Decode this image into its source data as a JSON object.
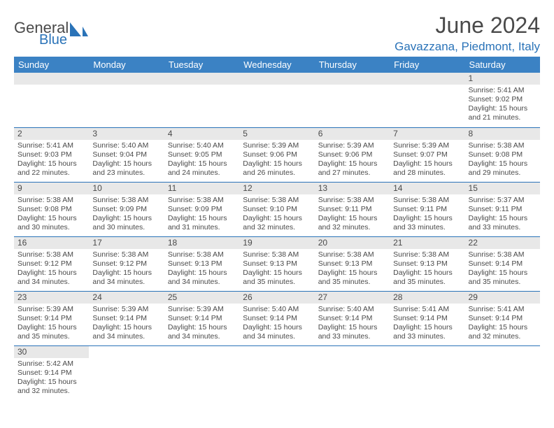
{
  "logo": {
    "general": "General",
    "blue": "Blue"
  },
  "title": "June 2024",
  "location": "Gavazzana, Piedmont, Italy",
  "colors": {
    "header_bg": "#3b82c4",
    "header_fg": "#ffffff",
    "accent": "#2a73b8",
    "daynum_bg": "#e8e8e8",
    "text": "#4a4a4a"
  },
  "weekdays": [
    "Sunday",
    "Monday",
    "Tuesday",
    "Wednesday",
    "Thursday",
    "Friday",
    "Saturday"
  ],
  "weeks": [
    [
      null,
      null,
      null,
      null,
      null,
      null,
      {
        "n": "1",
        "sr": "Sunrise: 5:41 AM",
        "ss": "Sunset: 9:02 PM",
        "d1": "Daylight: 15 hours",
        "d2": "and 21 minutes."
      }
    ],
    [
      {
        "n": "2",
        "sr": "Sunrise: 5:41 AM",
        "ss": "Sunset: 9:03 PM",
        "d1": "Daylight: 15 hours",
        "d2": "and 22 minutes."
      },
      {
        "n": "3",
        "sr": "Sunrise: 5:40 AM",
        "ss": "Sunset: 9:04 PM",
        "d1": "Daylight: 15 hours",
        "d2": "and 23 minutes."
      },
      {
        "n": "4",
        "sr": "Sunrise: 5:40 AM",
        "ss": "Sunset: 9:05 PM",
        "d1": "Daylight: 15 hours",
        "d2": "and 24 minutes."
      },
      {
        "n": "5",
        "sr": "Sunrise: 5:39 AM",
        "ss": "Sunset: 9:06 PM",
        "d1": "Daylight: 15 hours",
        "d2": "and 26 minutes."
      },
      {
        "n": "6",
        "sr": "Sunrise: 5:39 AM",
        "ss": "Sunset: 9:06 PM",
        "d1": "Daylight: 15 hours",
        "d2": "and 27 minutes."
      },
      {
        "n": "7",
        "sr": "Sunrise: 5:39 AM",
        "ss": "Sunset: 9:07 PM",
        "d1": "Daylight: 15 hours",
        "d2": "and 28 minutes."
      },
      {
        "n": "8",
        "sr": "Sunrise: 5:38 AM",
        "ss": "Sunset: 9:08 PM",
        "d1": "Daylight: 15 hours",
        "d2": "and 29 minutes."
      }
    ],
    [
      {
        "n": "9",
        "sr": "Sunrise: 5:38 AM",
        "ss": "Sunset: 9:08 PM",
        "d1": "Daylight: 15 hours",
        "d2": "and 30 minutes."
      },
      {
        "n": "10",
        "sr": "Sunrise: 5:38 AM",
        "ss": "Sunset: 9:09 PM",
        "d1": "Daylight: 15 hours",
        "d2": "and 30 minutes."
      },
      {
        "n": "11",
        "sr": "Sunrise: 5:38 AM",
        "ss": "Sunset: 9:09 PM",
        "d1": "Daylight: 15 hours",
        "d2": "and 31 minutes."
      },
      {
        "n": "12",
        "sr": "Sunrise: 5:38 AM",
        "ss": "Sunset: 9:10 PM",
        "d1": "Daylight: 15 hours",
        "d2": "and 32 minutes."
      },
      {
        "n": "13",
        "sr": "Sunrise: 5:38 AM",
        "ss": "Sunset: 9:11 PM",
        "d1": "Daylight: 15 hours",
        "d2": "and 32 minutes."
      },
      {
        "n": "14",
        "sr": "Sunrise: 5:38 AM",
        "ss": "Sunset: 9:11 PM",
        "d1": "Daylight: 15 hours",
        "d2": "and 33 minutes."
      },
      {
        "n": "15",
        "sr": "Sunrise: 5:37 AM",
        "ss": "Sunset: 9:11 PM",
        "d1": "Daylight: 15 hours",
        "d2": "and 33 minutes."
      }
    ],
    [
      {
        "n": "16",
        "sr": "Sunrise: 5:38 AM",
        "ss": "Sunset: 9:12 PM",
        "d1": "Daylight: 15 hours",
        "d2": "and 34 minutes."
      },
      {
        "n": "17",
        "sr": "Sunrise: 5:38 AM",
        "ss": "Sunset: 9:12 PM",
        "d1": "Daylight: 15 hours",
        "d2": "and 34 minutes."
      },
      {
        "n": "18",
        "sr": "Sunrise: 5:38 AM",
        "ss": "Sunset: 9:13 PM",
        "d1": "Daylight: 15 hours",
        "d2": "and 34 minutes."
      },
      {
        "n": "19",
        "sr": "Sunrise: 5:38 AM",
        "ss": "Sunset: 9:13 PM",
        "d1": "Daylight: 15 hours",
        "d2": "and 35 minutes."
      },
      {
        "n": "20",
        "sr": "Sunrise: 5:38 AM",
        "ss": "Sunset: 9:13 PM",
        "d1": "Daylight: 15 hours",
        "d2": "and 35 minutes."
      },
      {
        "n": "21",
        "sr": "Sunrise: 5:38 AM",
        "ss": "Sunset: 9:13 PM",
        "d1": "Daylight: 15 hours",
        "d2": "and 35 minutes."
      },
      {
        "n": "22",
        "sr": "Sunrise: 5:38 AM",
        "ss": "Sunset: 9:14 PM",
        "d1": "Daylight: 15 hours",
        "d2": "and 35 minutes."
      }
    ],
    [
      {
        "n": "23",
        "sr": "Sunrise: 5:39 AM",
        "ss": "Sunset: 9:14 PM",
        "d1": "Daylight: 15 hours",
        "d2": "and 35 minutes."
      },
      {
        "n": "24",
        "sr": "Sunrise: 5:39 AM",
        "ss": "Sunset: 9:14 PM",
        "d1": "Daylight: 15 hours",
        "d2": "and 34 minutes."
      },
      {
        "n": "25",
        "sr": "Sunrise: 5:39 AM",
        "ss": "Sunset: 9:14 PM",
        "d1": "Daylight: 15 hours",
        "d2": "and 34 minutes."
      },
      {
        "n": "26",
        "sr": "Sunrise: 5:40 AM",
        "ss": "Sunset: 9:14 PM",
        "d1": "Daylight: 15 hours",
        "d2": "and 34 minutes."
      },
      {
        "n": "27",
        "sr": "Sunrise: 5:40 AM",
        "ss": "Sunset: 9:14 PM",
        "d1": "Daylight: 15 hours",
        "d2": "and 33 minutes."
      },
      {
        "n": "28",
        "sr": "Sunrise: 5:41 AM",
        "ss": "Sunset: 9:14 PM",
        "d1": "Daylight: 15 hours",
        "d2": "and 33 minutes."
      },
      {
        "n": "29",
        "sr": "Sunrise: 5:41 AM",
        "ss": "Sunset: 9:14 PM",
        "d1": "Daylight: 15 hours",
        "d2": "and 32 minutes."
      }
    ],
    [
      {
        "n": "30",
        "sr": "Sunrise: 5:42 AM",
        "ss": "Sunset: 9:14 PM",
        "d1": "Daylight: 15 hours",
        "d2": "and 32 minutes."
      },
      null,
      null,
      null,
      null,
      null,
      null
    ]
  ]
}
